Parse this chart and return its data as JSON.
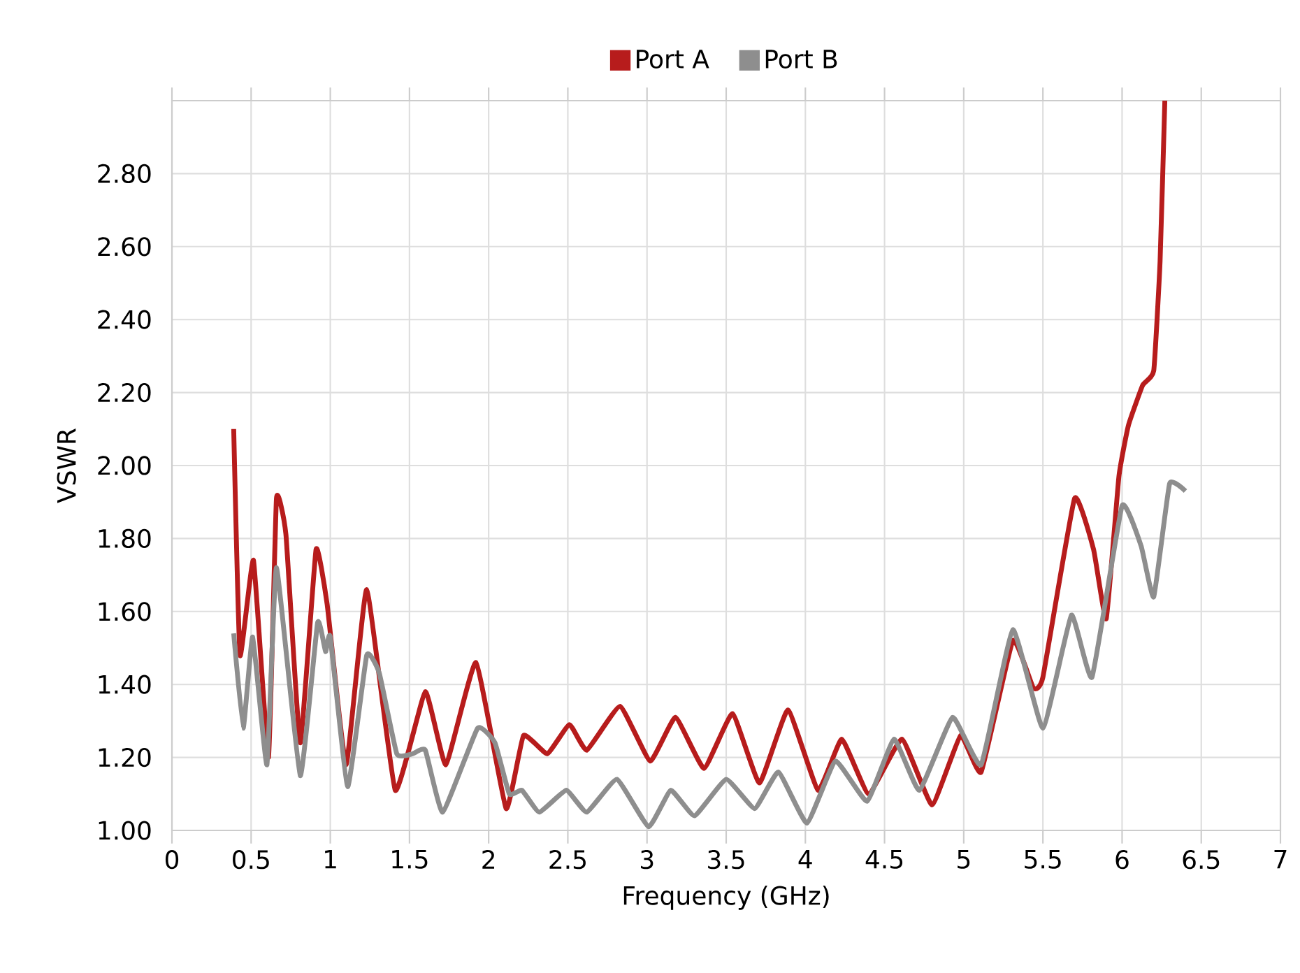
{
  "chart_data": {
    "type": "line",
    "xlabel": "Frequency (GHz)",
    "ylabel": "VSWR",
    "xlim": [
      0,
      7
    ],
    "ylim": [
      1,
      3
    ],
    "xticks": [
      0,
      0.5,
      1,
      1.5,
      2,
      2.5,
      3,
      3.5,
      4,
      4.5,
      5,
      5.5,
      6,
      6.5,
      7
    ],
    "yticks": [
      {
        "value": 1,
        "label": "1.00"
      },
      {
        "value": 1.2,
        "label": "1.20"
      },
      {
        "value": 1.4,
        "label": "1.40"
      },
      {
        "value": 1.6,
        "label": "1.60"
      },
      {
        "value": 1.8,
        "label": "1.80"
      },
      {
        "value": 2,
        "label": "2.00"
      },
      {
        "value": 2.2,
        "label": "2.20"
      },
      {
        "value": 2.4,
        "label": "2.40"
      },
      {
        "value": 2.6,
        "label": "2.60"
      },
      {
        "value": 2.8,
        "label": "2.80"
      }
    ],
    "grid": true,
    "legend": "top",
    "series": [
      {
        "name": "Port A",
        "color": "#b71c1c",
        "x": [
          0.39,
          0.43,
          0.515,
          0.61,
          0.66,
          0.72,
          0.81,
          0.91,
          0.98,
          1.1,
          1.23,
          1.41,
          1.6,
          1.73,
          1.92,
          2.11,
          2.22,
          2.37,
          2.51,
          2.62,
          2.83,
          3.02,
          3.18,
          3.36,
          3.54,
          3.71,
          3.89,
          4.08,
          4.23,
          4.4,
          4.61,
          4.8,
          4.98,
          5.11,
          5.31,
          5.44,
          5.5,
          5.7,
          5.82,
          5.9,
          5.98,
          6.04,
          6.13,
          6.2,
          6.24,
          6.27
        ],
        "values": [
          2.1,
          1.48,
          1.74,
          1.2,
          1.91,
          1.81,
          1.24,
          1.77,
          1.62,
          1.18,
          1.66,
          1.11,
          1.38,
          1.18,
          1.46,
          1.06,
          1.26,
          1.21,
          1.29,
          1.22,
          1.34,
          1.19,
          1.31,
          1.17,
          1.32,
          1.13,
          1.33,
          1.11,
          1.25,
          1.1,
          1.25,
          1.07,
          1.26,
          1.16,
          1.52,
          1.39,
          1.42,
          1.91,
          1.77,
          1.58,
          1.97,
          2.11,
          2.22,
          2.26,
          2.56,
          3.0
        ]
      },
      {
        "name": "Port B",
        "color": "#8e8e8e",
        "x": [
          0.39,
          0.45,
          0.51,
          0.6,
          0.66,
          0.81,
          0.92,
          0.97,
          1.0,
          1.11,
          1.23,
          1.31,
          1.42,
          1.52,
          1.6,
          1.71,
          1.93,
          2.04,
          2.13,
          2.21,
          2.32,
          2.49,
          2.62,
          2.81,
          3.01,
          3.15,
          3.3,
          3.5,
          3.68,
          3.83,
          4.01,
          4.19,
          4.39,
          4.56,
          4.72,
          4.93,
          5.11,
          5.31,
          5.5,
          5.68,
          5.81,
          6.0,
          6.12,
          6.2,
          6.3,
          6.4
        ],
        "values": [
          1.54,
          1.28,
          1.53,
          1.18,
          1.72,
          1.15,
          1.57,
          1.49,
          1.53,
          1.12,
          1.48,
          1.43,
          1.21,
          1.21,
          1.22,
          1.05,
          1.28,
          1.24,
          1.1,
          1.11,
          1.05,
          1.11,
          1.05,
          1.14,
          1.01,
          1.11,
          1.04,
          1.14,
          1.06,
          1.16,
          1.02,
          1.19,
          1.08,
          1.25,
          1.11,
          1.31,
          1.18,
          1.55,
          1.28,
          1.59,
          1.42,
          1.89,
          1.78,
          1.64,
          1.95,
          1.93
        ]
      }
    ]
  }
}
